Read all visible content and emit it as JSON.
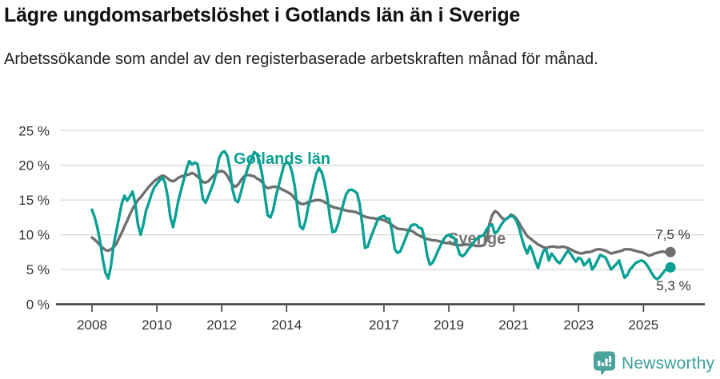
{
  "header": {
    "title": "Lägre ungdomsarbetslöshet i Gotlands län än i Sverige",
    "subtitle": "Arbetssökande som andel av den registerbaserade arbetskraften månad för månad."
  },
  "branding": {
    "logo_text": "Newsworthy",
    "logo_icon": "bar-chart-speech-bubble-icon",
    "logo_color": "#3a9f99"
  },
  "chart_data": {
    "type": "line",
    "title": "Lägre ungdomsarbetslöshet i Gotlands län än i Sverige",
    "subtitle": "Arbetssökande som andel av den registerbaserade arbetskraften månad för månad.",
    "unit": "%",
    "frequency": "monthly",
    "x_start": "2008-01",
    "x_end": "2025-11",
    "ylim": [
      0,
      25
    ],
    "grid": "horizontal",
    "legend_position": "inline-labels",
    "y_ticks": [
      {
        "value": 0,
        "label": "0 %"
      },
      {
        "value": 5,
        "label": "5 %"
      },
      {
        "value": 10,
        "label": "10 %"
      },
      {
        "value": 15,
        "label": "15 %"
      },
      {
        "value": 20,
        "label": "20 %"
      },
      {
        "value": 25,
        "label": "25 %"
      }
    ],
    "x_ticks": [
      2008,
      2010,
      2012,
      2014,
      2017,
      2019,
      2021,
      2023,
      2025
    ],
    "series": [
      {
        "name": "Sverige",
        "slug": "sverige",
        "color": "#6f6f6f",
        "label_color": "#757575",
        "end_label": "7,5 %",
        "end_value": 7.5,
        "values": [
          9.6,
          9.3,
          8.9,
          8.5,
          8.1,
          7.8,
          7.7,
          7.9,
          8.2,
          8.7,
          9.5,
          10.3,
          11.2,
          12.0,
          12.9,
          13.7,
          14.4,
          15.0,
          15.4,
          15.9,
          16.4,
          16.9,
          17.3,
          17.7,
          18.0,
          18.3,
          18.5,
          18.4,
          18.1,
          17.8,
          17.7,
          17.9,
          18.2,
          18.4,
          18.5,
          18.6,
          18.7,
          18.9,
          18.7,
          18.4,
          18.0,
          17.6,
          17.5,
          17.7,
          18.1,
          18.5,
          18.9,
          19.1,
          19.2,
          19.0,
          18.5,
          17.8,
          17.2,
          16.9,
          17.2,
          17.8,
          18.3,
          18.6,
          18.6,
          18.5,
          18.4,
          18.1,
          17.9,
          17.5,
          17.0,
          16.7,
          16.8,
          16.9,
          16.9,
          16.8,
          16.6,
          16.4,
          16.2,
          16.0,
          15.7,
          15.2,
          14.8,
          14.5,
          14.4,
          14.5,
          14.7,
          14.8,
          14.9,
          15.0,
          15.0,
          14.9,
          14.7,
          14.5,
          14.2,
          14.0,
          13.9,
          13.8,
          13.7,
          13.6,
          13.5,
          13.4,
          13.4,
          13.3,
          13.2,
          13.0,
          12.8,
          12.6,
          12.5,
          12.4,
          12.4,
          12.3,
          12.3,
          12.2,
          12.1,
          11.9,
          11.7,
          11.4,
          11.1,
          10.9,
          10.8,
          10.8,
          10.7,
          10.7,
          10.6,
          10.4,
          10.1,
          9.9,
          9.7,
          9.5,
          9.4,
          9.3,
          9.2,
          9.2,
          9.1,
          9.0,
          8.9,
          8.8,
          8.8,
          8.7,
          8.6,
          8.5,
          8.5,
          8.5,
          8.6,
          8.6,
          8.5,
          8.5,
          8.4,
          8.4,
          8.4,
          8.5,
          9.2,
          11.5,
          12.8,
          13.4,
          13.2,
          12.7,
          12.3,
          12.2,
          12.5,
          12.9,
          12.7,
          12.3,
          11.7,
          11.0,
          10.4,
          9.8,
          9.5,
          9.2,
          8.9,
          8.6,
          8.4,
          8.2,
          8.1,
          8.2,
          8.3,
          8.3,
          8.2,
          8.2,
          8.3,
          8.2,
          8.1,
          7.9,
          7.7,
          7.5,
          7.4,
          7.3,
          7.4,
          7.5,
          7.5,
          7.6,
          7.8,
          7.9,
          7.9,
          7.8,
          7.7,
          7.5,
          7.3,
          7.4,
          7.5,
          7.6,
          7.7,
          7.9,
          7.9,
          7.9,
          7.8,
          7.7,
          7.6,
          7.5,
          7.4,
          7.2,
          7.0,
          7.1,
          7.3,
          7.4,
          7.5,
          7.6,
          7.5,
          7.5,
          7.5
        ]
      },
      {
        "name": "Gotlands län",
        "slug": "gotlands-lan",
        "color": "#0aa093",
        "label_color": "#0aa093",
        "end_label": "5,3 %",
        "end_value": 5.3,
        "values": [
          13.6,
          12.5,
          11.0,
          9.0,
          6.5,
          4.5,
          3.7,
          5.5,
          8.5,
          10.5,
          12.5,
          14.5,
          15.6,
          14.9,
          15.5,
          16.2,
          14.5,
          11.5,
          10.0,
          11.5,
          13.5,
          14.6,
          15.8,
          16.8,
          17.3,
          17.8,
          18.3,
          17.5,
          15.5,
          12.5,
          11.1,
          13.0,
          15.0,
          16.5,
          18.0,
          19.5,
          20.6,
          20.1,
          20.4,
          20.2,
          18.0,
          15.2,
          14.6,
          15.5,
          16.5,
          17.5,
          19.0,
          21.0,
          21.8,
          22.0,
          21.4,
          19.5,
          16.5,
          15.0,
          14.7,
          16.0,
          17.5,
          18.8,
          20.0,
          21.0,
          21.9,
          21.6,
          20.5,
          18.5,
          15.5,
          12.8,
          12.5,
          13.5,
          15.5,
          17.0,
          18.5,
          20.0,
          20.5,
          20.2,
          19.0,
          17.0,
          13.8,
          11.2,
          10.8,
          12.0,
          14.0,
          15.5,
          17.2,
          18.8,
          19.6,
          19.0,
          17.5,
          15.5,
          12.5,
          10.4,
          10.5,
          11.5,
          13.0,
          14.5,
          15.8,
          16.4,
          16.5,
          16.3,
          16.0,
          14.5,
          11.5,
          8.1,
          8.3,
          9.5,
          10.5,
          11.5,
          12.4,
          12.6,
          12.7,
          12.3,
          12.3,
          10.5,
          7.9,
          7.4,
          7.6,
          8.5,
          9.5,
          10.5,
          11.3,
          11.5,
          11.4,
          11.0,
          10.9,
          9.5,
          7.0,
          5.7,
          6.0,
          6.8,
          7.7,
          8.5,
          9.3,
          9.8,
          10.0,
          9.8,
          9.5,
          8.5,
          7.2,
          6.9,
          7.2,
          7.8,
          8.3,
          8.8,
          9.3,
          9.6,
          9.8,
          10.0,
          10.8,
          11.3,
          11.5,
          10.2,
          10.5,
          11.2,
          11.8,
          12.2,
          12.5,
          12.7,
          12.6,
          12.0,
          11.0,
          9.5,
          8.2,
          7.3,
          8.4,
          7.5,
          6.2,
          5.2,
          6.5,
          7.7,
          7.9,
          6.3,
          7.3,
          6.8,
          6.2,
          5.9,
          6.5,
          7.1,
          7.7,
          7.3,
          6.7,
          6.1,
          6.7,
          6.5,
          5.6,
          6.0,
          6.5,
          5.0,
          5.5,
          6.3,
          7.1,
          6.9,
          6.7,
          5.9,
          5.0,
          5.4,
          5.8,
          6.3,
          5.0,
          3.8,
          4.2,
          5.0,
          5.4,
          5.9,
          6.1,
          6.3,
          6.2,
          5.8,
          5.2,
          4.5,
          3.9,
          3.6,
          3.9,
          4.4,
          4.9,
          5.1,
          5.3
        ]
      }
    ]
  }
}
